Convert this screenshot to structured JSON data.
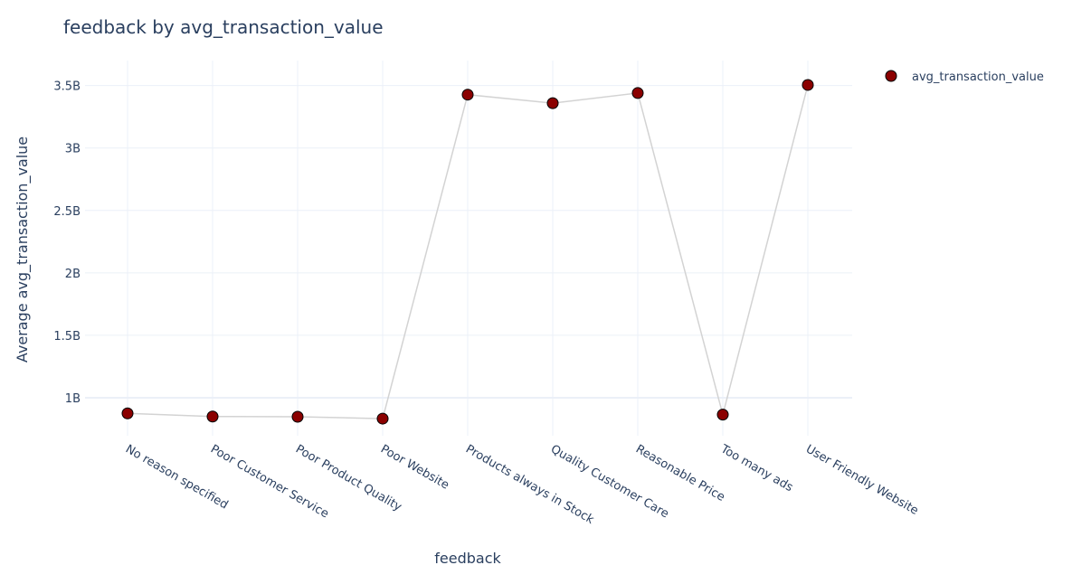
{
  "chart_data": {
    "type": "line",
    "title": "feedback by avg_transaction_value",
    "xlabel": "feedback",
    "ylabel": "Average avg_transaction_value",
    "categories": [
      "No reason specified",
      "Poor Customer Service",
      "Poor Product Quality",
      "Poor Website",
      "Products always in Stock",
      "Quality Customer Care",
      "Reasonable Price",
      "Too many ads",
      "User Friendly Website"
    ],
    "series": [
      {
        "name": "avg_transaction_value",
        "values": [
          875000000,
          850000000,
          848000000,
          833000000,
          3427000000,
          3359000000,
          3440000000,
          865000000,
          3505000000
        ],
        "marker_color": "#8b0000",
        "marker_outline": "#000000",
        "line_color": "#d3d3d3"
      }
    ],
    "yticks": [
      1000000000,
      1500000000,
      2000000000,
      2500000000,
      3000000000,
      3500000000
    ],
    "ytick_labels": [
      "1B",
      "1.5B",
      "2B",
      "2.5B",
      "3B",
      "3.5B"
    ],
    "ylim": [
      696000000,
      3700000000
    ],
    "grid": true,
    "legend_position": "top-right"
  }
}
